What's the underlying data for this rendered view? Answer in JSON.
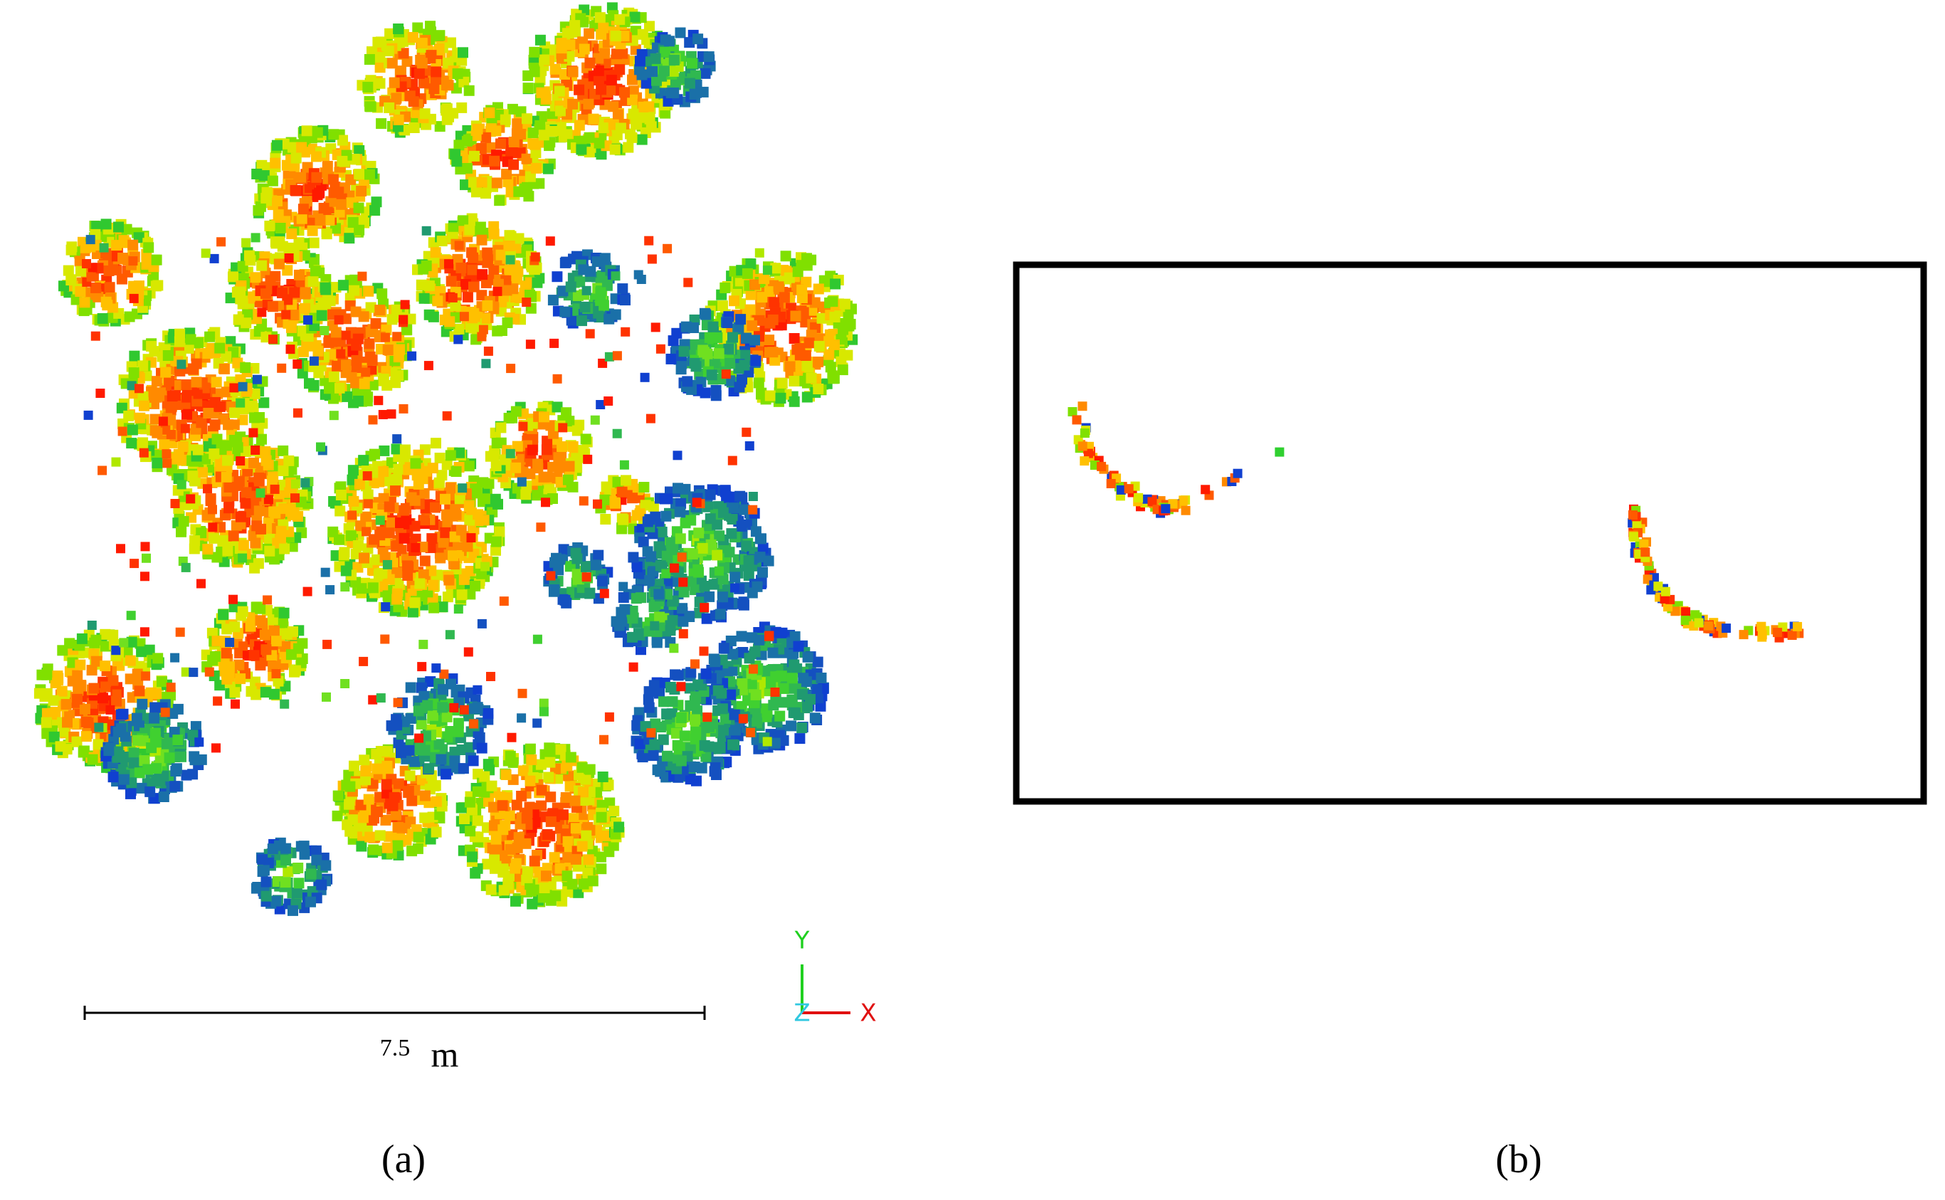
{
  "panels": [
    {
      "label": "(a)",
      "scale_bar": {
        "value": 7.5,
        "unit": "m"
      },
      "axes": {
        "y": "Y",
        "z": "Z",
        "x": "X"
      }
    },
    {
      "label": "(b)"
    }
  ]
}
